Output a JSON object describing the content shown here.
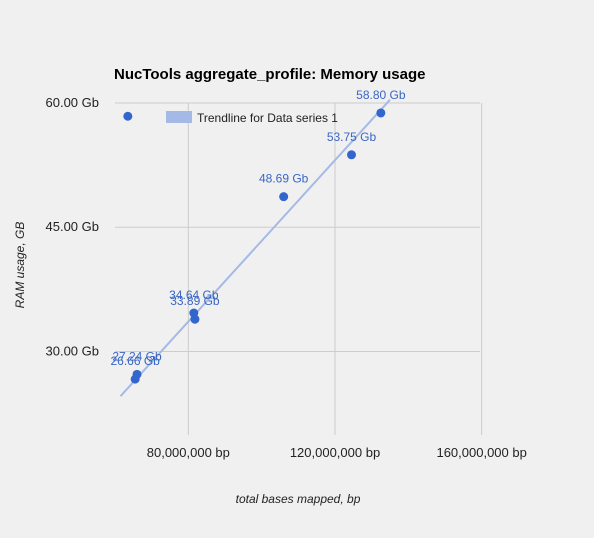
{
  "chart_data": {
    "type": "scatter",
    "title": "NucTools aggregate_profile: Memory usage",
    "xlabel": "total bases mapped, bp",
    "ylabel": "RAM usage, GB",
    "xlim": [
      60000000,
      180000000
    ],
    "ylim": [
      21,
      60
    ],
    "x_ticks": [
      {
        "value": 80000000,
        "label": "80,000,000 bp"
      },
      {
        "value": 120000000,
        "label": "120,000,000 bp"
      },
      {
        "value": 160000000,
        "label": "160,000,000 bp"
      }
    ],
    "y_ticks": [
      {
        "value": 30,
        "label": "30.00 Gb"
      },
      {
        "value": 45,
        "label": "45.00 Gb"
      },
      {
        "value": 60,
        "label": "60.00 Gb"
      }
    ],
    "grid": true,
    "legend_position": "top",
    "series": [
      {
        "name": "Data series 1",
        "color": "#3366cc",
        "points": [
          {
            "x": 65500000,
            "y": 26.66,
            "label": "26.66 Gb"
          },
          {
            "x": 66000000,
            "y": 27.24,
            "label": "27.24 Gb"
          },
          {
            "x": 81500000,
            "y": 34.64,
            "label": "34.64 Gb"
          },
          {
            "x": 81800000,
            "y": 33.89,
            "label": "33.89 Gb"
          },
          {
            "x": 106000000,
            "y": 48.69,
            "label": "48.69 Gb"
          },
          {
            "x": 124500000,
            "y": 53.75,
            "label": "53.75 Gb"
          },
          {
            "x": 132500000,
            "y": 58.8,
            "label": "58.80 Gb"
          },
          {
            "x": 63500000,
            "y": 58.4,
            "label": ""
          }
        ]
      }
    ],
    "trendline": {
      "label": "Trendline for Data series 1",
      "color": "#a4b9e6",
      "x_start": 61500000,
      "y_start": 24.6,
      "x_end": 135000000,
      "y_end": 60.4
    }
  }
}
